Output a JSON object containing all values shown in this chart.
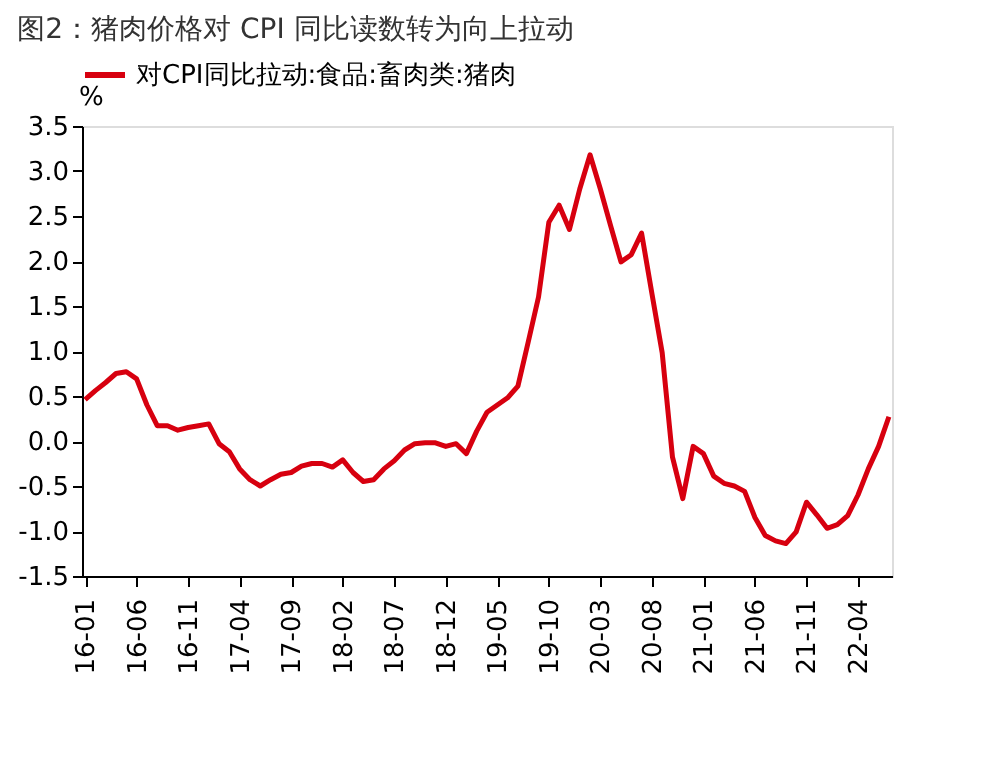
{
  "chart_data": {
    "type": "line",
    "title": "图2：猪肉价格对 CPI 同比读数转为向上拉动",
    "ylabel": "%",
    "categories": [
      "16-01",
      null,
      null,
      null,
      null,
      "16-06",
      null,
      null,
      null,
      null,
      "16-11",
      null,
      null,
      null,
      null,
      "17-04",
      null,
      null,
      null,
      null,
      "17-09",
      null,
      null,
      null,
      null,
      "18-02",
      null,
      null,
      null,
      null,
      "18-07",
      null,
      null,
      null,
      null,
      "18-12",
      null,
      null,
      null,
      null,
      "19-05",
      null,
      null,
      null,
      null,
      "19-10",
      null,
      null,
      null,
      null,
      "20-03",
      null,
      null,
      null,
      null,
      "20-08",
      null,
      null,
      null,
      null,
      "21-01",
      null,
      null,
      null,
      null,
      "21-06",
      null,
      null,
      null,
      null,
      "21-11",
      null,
      null,
      null,
      null,
      "22-04",
      null,
      null,
      null
    ],
    "series": [
      {
        "name": "对CPI同比拉动:食品:畜肉类:猪肉",
        "color": "#d7000f",
        "values": [
          0.46,
          0.56,
          0.65,
          0.75,
          0.77,
          0.69,
          0.4,
          0.17,
          0.17,
          0.12,
          0.15,
          0.17,
          0.19,
          -0.03,
          -0.12,
          -0.31,
          -0.43,
          -0.5,
          -0.43,
          -0.37,
          -0.35,
          -0.28,
          -0.25,
          -0.25,
          -0.29,
          -0.21,
          -0.35,
          -0.45,
          -0.43,
          -0.31,
          -0.22,
          -0.1,
          -0.03,
          -0.02,
          -0.02,
          -0.06,
          -0.03,
          -0.14,
          0.11,
          0.32,
          0.4,
          0.48,
          0.61,
          1.1,
          1.6,
          2.43,
          2.62,
          2.35,
          2.8,
          3.18,
          2.8,
          2.39,
          1.99,
          2.07,
          2.31,
          1.64,
          0.98,
          -0.18,
          -0.64,
          -0.06,
          -0.14,
          -0.39,
          -0.47,
          -0.5,
          -0.56,
          -0.85,
          -1.05,
          -1.11,
          -1.14,
          -1.01,
          -0.68,
          -0.82,
          -0.97,
          -0.93,
          -0.83,
          -0.6,
          -0.31,
          -0.06,
          0.27
        ]
      }
    ],
    "ylim": [
      -1.5,
      3.5
    ],
    "yticks": [
      {
        "value": -1.5,
        "label": "-1.5"
      },
      {
        "value": -1,
        "label": "-1.0"
      },
      {
        "value": -0.5,
        "label": "-0.5"
      },
      {
        "value": 0,
        "label": "0.0"
      },
      {
        "value": 0.5,
        "label": "0.5"
      },
      {
        "value": 1,
        "label": "1.0"
      },
      {
        "value": 1.5,
        "label": "1.5"
      },
      {
        "value": 2,
        "label": "2.0"
      },
      {
        "value": 2.5,
        "label": "2.5"
      },
      {
        "value": 3,
        "label": "3.0"
      },
      {
        "value": 3.5,
        "label": "3.5"
      }
    ],
    "grid": false,
    "legend": "top",
    "marker": "none",
    "line_style": "solid"
  }
}
